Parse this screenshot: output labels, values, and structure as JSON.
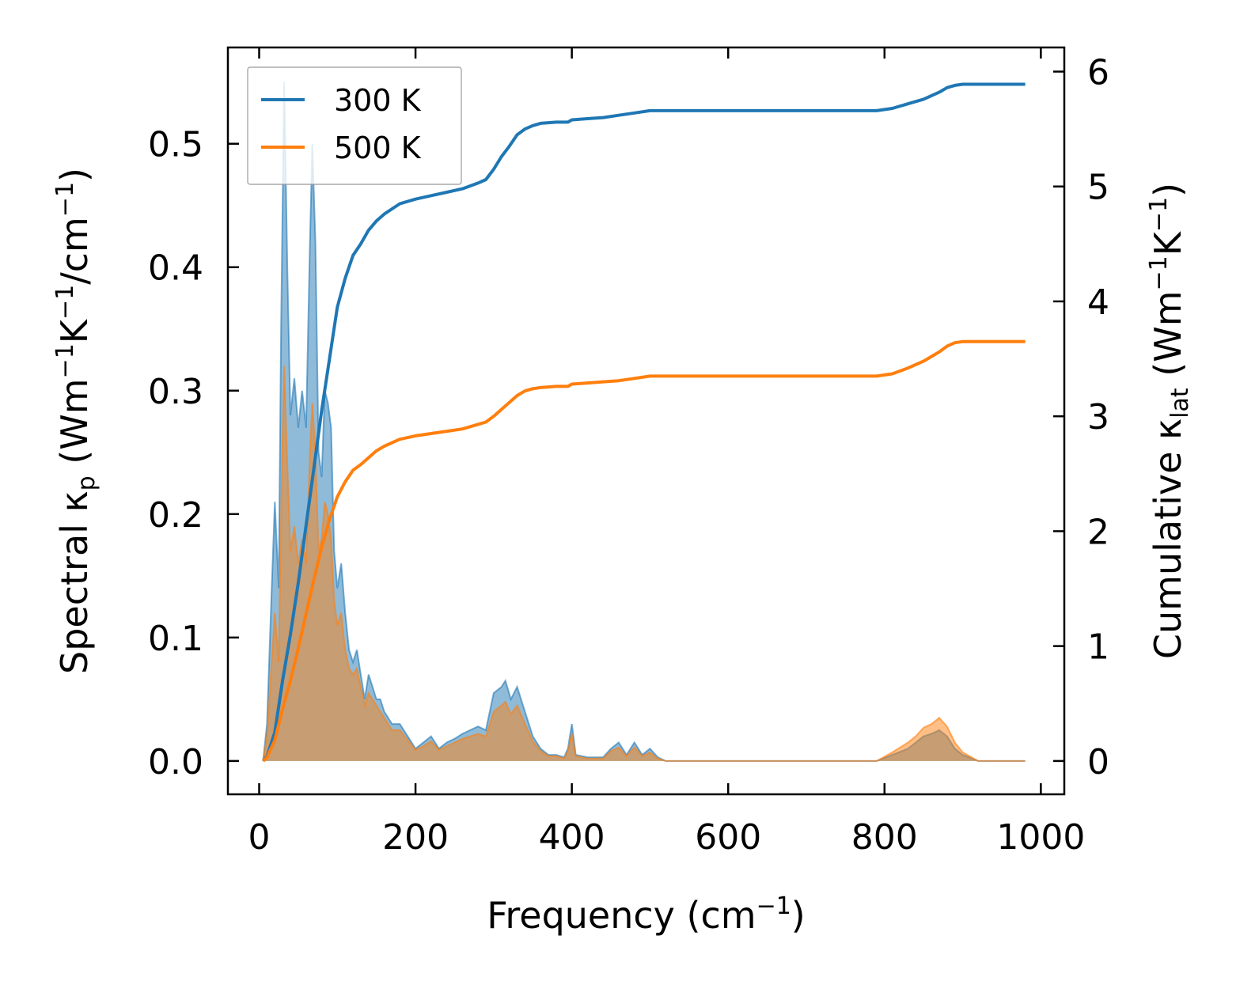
{
  "chart_data": {
    "type": "line",
    "xlabel": "Frequency (cm",
    "xlabel_sup": "−1",
    "xlabel_tail": ")",
    "ylabel_left": {
      "pre": "Spectral κ",
      "sub": "p",
      "mid1": " (Wm",
      "sup1": "−1",
      "mid2": "K",
      "sup2": "−1",
      "mid3": "/cm",
      "sup3": "−1",
      "tail": ")"
    },
    "ylabel_right": {
      "pre": "Cumulative κ",
      "sub": "lat",
      "mid1": " (Wm",
      "sup1": "−1",
      "mid2": "K",
      "sup2": "−1",
      "tail": ")"
    },
    "xlim": [
      -40,
      1030
    ],
    "ylim_left": [
      -0.027,
      0.578
    ],
    "ylim_right": [
      -0.29,
      6.21
    ],
    "x_ticks": [
      0,
      200,
      400,
      600,
      800,
      1000
    ],
    "x_tick_labels": [
      "0",
      "200",
      "400",
      "600",
      "800",
      "1000"
    ],
    "y_left_ticks": [
      0.0,
      0.1,
      0.2,
      0.3,
      0.4,
      0.5
    ],
    "y_left_tick_labels": [
      "0.0",
      "0.1",
      "0.2",
      "0.3",
      "0.4",
      "0.5"
    ],
    "y_right_ticks": [
      0,
      1,
      2,
      3,
      4,
      5,
      6
    ],
    "y_right_tick_labels": [
      "0",
      "1",
      "2",
      "3",
      "4",
      "5",
      "6"
    ],
    "legend": {
      "position": "top-left",
      "entries": [
        "300 K",
        "500 K"
      ]
    },
    "series": [
      {
        "name": "300 K",
        "color": "#1f77b4",
        "spectral": [
          [
            5,
            0.0
          ],
          [
            10,
            0.03
          ],
          [
            15,
            0.12
          ],
          [
            20,
            0.21
          ],
          [
            25,
            0.14
          ],
          [
            28,
            0.35
          ],
          [
            32,
            0.55
          ],
          [
            36,
            0.4
          ],
          [
            40,
            0.28
          ],
          [
            45,
            0.31
          ],
          [
            50,
            0.27
          ],
          [
            55,
            0.3
          ],
          [
            60,
            0.27
          ],
          [
            65,
            0.42
          ],
          [
            68,
            0.5
          ],
          [
            72,
            0.42
          ],
          [
            76,
            0.25
          ],
          [
            80,
            0.23
          ],
          [
            84,
            0.3
          ],
          [
            88,
            0.29
          ],
          [
            92,
            0.27
          ],
          [
            96,
            0.17
          ],
          [
            100,
            0.14
          ],
          [
            105,
            0.16
          ],
          [
            110,
            0.12
          ],
          [
            115,
            0.09
          ],
          [
            120,
            0.08
          ],
          [
            125,
            0.09
          ],
          [
            130,
            0.07
          ],
          [
            135,
            0.05
          ],
          [
            140,
            0.07
          ],
          [
            145,
            0.06
          ],
          [
            150,
            0.05
          ],
          [
            155,
            0.05
          ],
          [
            160,
            0.04
          ],
          [
            170,
            0.03
          ],
          [
            180,
            0.03
          ],
          [
            190,
            0.02
          ],
          [
            200,
            0.01
          ],
          [
            210,
            0.015
          ],
          [
            220,
            0.02
          ],
          [
            230,
            0.01
          ],
          [
            240,
            0.015
          ],
          [
            250,
            0.018
          ],
          [
            260,
            0.022
          ],
          [
            270,
            0.025
          ],
          [
            280,
            0.028
          ],
          [
            290,
            0.025
          ],
          [
            300,
            0.055
          ],
          [
            310,
            0.06
          ],
          [
            315,
            0.065
          ],
          [
            322,
            0.05
          ],
          [
            330,
            0.06
          ],
          [
            340,
            0.04
          ],
          [
            350,
            0.02
          ],
          [
            360,
            0.01
          ],
          [
            370,
            0.005
          ],
          [
            380,
            0.005
          ],
          [
            390,
            0.003
          ],
          [
            395,
            0.01
          ],
          [
            400,
            0.03
          ],
          [
            405,
            0.005
          ],
          [
            420,
            0.003
          ],
          [
            440,
            0.003
          ],
          [
            450,
            0.01
          ],
          [
            460,
            0.015
          ],
          [
            470,
            0.005
          ],
          [
            480,
            0.015
          ],
          [
            490,
            0.005
          ],
          [
            500,
            0.01
          ],
          [
            510,
            0.003
          ],
          [
            520,
            0.0
          ],
          [
            790,
            0.0
          ],
          [
            810,
            0.005
          ],
          [
            830,
            0.01
          ],
          [
            840,
            0.015
          ],
          [
            850,
            0.02
          ],
          [
            860,
            0.022
          ],
          [
            870,
            0.025
          ],
          [
            880,
            0.02
          ],
          [
            890,
            0.01
          ],
          [
            900,
            0.005
          ],
          [
            920,
            0.0
          ],
          [
            980,
            0.0
          ]
        ],
        "cumulative": [
          [
            5,
            0.0
          ],
          [
            10,
            0.04
          ],
          [
            20,
            0.25
          ],
          [
            30,
            0.7
          ],
          [
            40,
            1.1
          ],
          [
            50,
            1.55
          ],
          [
            60,
            2.05
          ],
          [
            70,
            2.55
          ],
          [
            80,
            3.05
          ],
          [
            90,
            3.5
          ],
          [
            100,
            3.95
          ],
          [
            110,
            4.2
          ],
          [
            120,
            4.4
          ],
          [
            130,
            4.5
          ],
          [
            140,
            4.62
          ],
          [
            150,
            4.7
          ],
          [
            160,
            4.76
          ],
          [
            180,
            4.85
          ],
          [
            200,
            4.89
          ],
          [
            220,
            4.92
          ],
          [
            240,
            4.95
          ],
          [
            260,
            4.98
          ],
          [
            280,
            5.03
          ],
          [
            290,
            5.06
          ],
          [
            300,
            5.15
          ],
          [
            310,
            5.26
          ],
          [
            320,
            5.35
          ],
          [
            330,
            5.45
          ],
          [
            340,
            5.5
          ],
          [
            350,
            5.53
          ],
          [
            360,
            5.55
          ],
          [
            380,
            5.56
          ],
          [
            395,
            5.56
          ],
          [
            400,
            5.58
          ],
          [
            420,
            5.59
          ],
          [
            440,
            5.6
          ],
          [
            460,
            5.62
          ],
          [
            480,
            5.64
          ],
          [
            500,
            5.66
          ],
          [
            520,
            5.66
          ],
          [
            790,
            5.66
          ],
          [
            810,
            5.68
          ],
          [
            830,
            5.72
          ],
          [
            850,
            5.76
          ],
          [
            870,
            5.82
          ],
          [
            880,
            5.86
          ],
          [
            890,
            5.88
          ],
          [
            900,
            5.89
          ],
          [
            980,
            5.89
          ]
        ]
      },
      {
        "name": "500 K",
        "color": "#ff7f0e",
        "spectral": [
          [
            5,
            0.0
          ],
          [
            10,
            0.02
          ],
          [
            15,
            0.07
          ],
          [
            20,
            0.12
          ],
          [
            25,
            0.08
          ],
          [
            28,
            0.2
          ],
          [
            32,
            0.32
          ],
          [
            36,
            0.24
          ],
          [
            40,
            0.17
          ],
          [
            45,
            0.19
          ],
          [
            50,
            0.16
          ],
          [
            55,
            0.18
          ],
          [
            60,
            0.16
          ],
          [
            65,
            0.25
          ],
          [
            68,
            0.29
          ],
          [
            72,
            0.25
          ],
          [
            76,
            0.17
          ],
          [
            80,
            0.18
          ],
          [
            84,
            0.21
          ],
          [
            88,
            0.2
          ],
          [
            92,
            0.18
          ],
          [
            96,
            0.13
          ],
          [
            100,
            0.11
          ],
          [
            105,
            0.12
          ],
          [
            110,
            0.09
          ],
          [
            115,
            0.075
          ],
          [
            120,
            0.07
          ],
          [
            125,
            0.075
          ],
          [
            130,
            0.06
          ],
          [
            135,
            0.045
          ],
          [
            140,
            0.055
          ],
          [
            145,
            0.05
          ],
          [
            150,
            0.045
          ],
          [
            155,
            0.04
          ],
          [
            160,
            0.035
          ],
          [
            170,
            0.025
          ],
          [
            180,
            0.025
          ],
          [
            190,
            0.017
          ],
          [
            200,
            0.009
          ],
          [
            210,
            0.012
          ],
          [
            220,
            0.016
          ],
          [
            230,
            0.009
          ],
          [
            240,
            0.012
          ],
          [
            250,
            0.015
          ],
          [
            260,
            0.018
          ],
          [
            270,
            0.02
          ],
          [
            280,
            0.022
          ],
          [
            290,
            0.02
          ],
          [
            300,
            0.04
          ],
          [
            310,
            0.045
          ],
          [
            315,
            0.048
          ],
          [
            322,
            0.038
          ],
          [
            330,
            0.045
          ],
          [
            340,
            0.03
          ],
          [
            350,
            0.016
          ],
          [
            360,
            0.008
          ],
          [
            370,
            0.004
          ],
          [
            380,
            0.004
          ],
          [
            390,
            0.002
          ],
          [
            395,
            0.008
          ],
          [
            400,
            0.022
          ],
          [
            405,
            0.004
          ],
          [
            420,
            0.002
          ],
          [
            440,
            0.002
          ],
          [
            450,
            0.008
          ],
          [
            460,
            0.011
          ],
          [
            470,
            0.004
          ],
          [
            480,
            0.011
          ],
          [
            490,
            0.004
          ],
          [
            500,
            0.007
          ],
          [
            510,
            0.002
          ],
          [
            520,
            0.0
          ],
          [
            790,
            0.0
          ],
          [
            810,
            0.007
          ],
          [
            830,
            0.015
          ],
          [
            840,
            0.02
          ],
          [
            850,
            0.027
          ],
          [
            860,
            0.03
          ],
          [
            870,
            0.035
          ],
          [
            880,
            0.028
          ],
          [
            890,
            0.015
          ],
          [
            900,
            0.007
          ],
          [
            920,
            0.0
          ],
          [
            980,
            0.0
          ]
        ],
        "cumulative": [
          [
            5,
            0.0
          ],
          [
            10,
            0.03
          ],
          [
            20,
            0.18
          ],
          [
            30,
            0.45
          ],
          [
            40,
            0.7
          ],
          [
            50,
            0.98
          ],
          [
            60,
            1.28
          ],
          [
            70,
            1.58
          ],
          [
            80,
            1.86
          ],
          [
            90,
            2.1
          ],
          [
            100,
            2.3
          ],
          [
            110,
            2.43
          ],
          [
            120,
            2.53
          ],
          [
            130,
            2.58
          ],
          [
            140,
            2.64
          ],
          [
            150,
            2.7
          ],
          [
            160,
            2.74
          ],
          [
            180,
            2.8
          ],
          [
            200,
            2.83
          ],
          [
            220,
            2.85
          ],
          [
            240,
            2.87
          ],
          [
            260,
            2.89
          ],
          [
            280,
            2.93
          ],
          [
            290,
            2.95
          ],
          [
            300,
            3.0
          ],
          [
            310,
            3.06
          ],
          [
            320,
            3.12
          ],
          [
            330,
            3.18
          ],
          [
            340,
            3.22
          ],
          [
            350,
            3.24
          ],
          [
            360,
            3.25
          ],
          [
            380,
            3.26
          ],
          [
            395,
            3.26
          ],
          [
            400,
            3.28
          ],
          [
            420,
            3.29
          ],
          [
            440,
            3.3
          ],
          [
            460,
            3.31
          ],
          [
            480,
            3.33
          ],
          [
            500,
            3.35
          ],
          [
            520,
            3.35
          ],
          [
            790,
            3.35
          ],
          [
            810,
            3.37
          ],
          [
            830,
            3.42
          ],
          [
            850,
            3.48
          ],
          [
            870,
            3.56
          ],
          [
            880,
            3.61
          ],
          [
            890,
            3.64
          ],
          [
            900,
            3.65
          ],
          [
            980,
            3.65
          ]
        ]
      }
    ]
  }
}
